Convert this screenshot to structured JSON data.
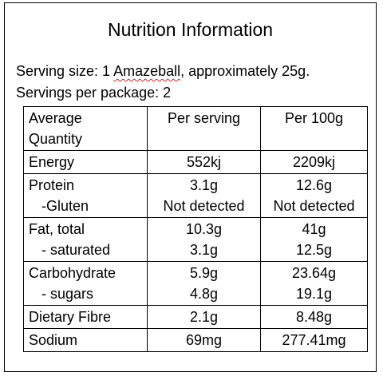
{
  "title": "Nutrition Information",
  "serving_size_prefix": "Serving size: 1 ",
  "serving_size_item": "Amazeball",
  "serving_size_suffix": ", approximately 25g.",
  "servings_per_package": "Servings per package: 2",
  "table": {
    "headers": {
      "quantity_line1": "Average",
      "quantity_line2": "Quantity",
      "per_serving": "Per serving",
      "per_100g": "Per 100g"
    },
    "rows": [
      {
        "lines": [
          {
            "name": "Energy",
            "per_serving": "552kj",
            "per_100g": "2209kj"
          }
        ]
      },
      {
        "lines": [
          {
            "name": "Protein",
            "per_serving": "3.1g",
            "per_100g": "12.6g"
          },
          {
            "name": "-Gluten",
            "per_serving": "Not detected",
            "per_100g": "Not detected"
          }
        ]
      },
      {
        "lines": [
          {
            "name": "Fat, total",
            "per_serving": "10.3g",
            "per_100g": "41g"
          },
          {
            "name": "- saturated",
            "per_serving": "3.1g",
            "per_100g": "12.5g"
          }
        ]
      },
      {
        "lines": [
          {
            "name": "Carbohydrate",
            "per_serving": "5.9g",
            "per_100g": "23.64g"
          },
          {
            "name": "- sugars",
            "per_serving": "4.8g",
            "per_100g": "19.1g"
          }
        ]
      },
      {
        "lines": [
          {
            "name": "Dietary Fibre",
            "per_serving": "2.1g",
            "per_100g": "8.48g"
          }
        ]
      },
      {
        "lines": [
          {
            "name": "Sodium",
            "per_serving": "69mg",
            "per_100g": "277.41mg"
          }
        ]
      }
    ]
  }
}
